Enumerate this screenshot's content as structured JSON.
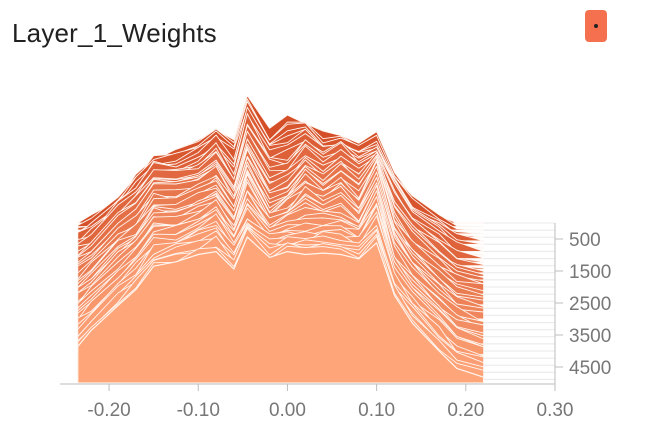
{
  "title": "Layer_1_Weights",
  "menu_icon": "more-icon",
  "colors": {
    "front": "#ffa57a",
    "back": "#d44e27",
    "accent": "#f4704f",
    "rim": "#fff5ef",
    "axis": "#bdbdbd",
    "tick_text": "#777777"
  },
  "chart_data": {
    "type": "area",
    "title": "Layer_1_Weights",
    "xlabel": "",
    "ylabel": "",
    "xlim": [
      -0.255,
      0.3
    ],
    "x_ticks": [
      -0.2,
      -0.1,
      0.0,
      0.1,
      0.2,
      0.3
    ],
    "x_tick_labels": [
      "-0.20",
      "-0.10",
      "0.00",
      "0.10",
      "0.20",
      "0.30"
    ],
    "step_range": [
      0,
      5000
    ],
    "step_ticks": [
      500,
      1500,
      2500,
      3500,
      4500
    ],
    "step_tick_labels": [
      "500",
      "1500",
      "2500",
      "3500",
      "4500"
    ],
    "grid": false,
    "x": [
      -0.235,
      -0.22,
      -0.19,
      -0.17,
      -0.15,
      -0.125,
      -0.1,
      -0.08,
      -0.06,
      -0.045,
      -0.02,
      0.0,
      0.02,
      0.04,
      0.06,
      0.08,
      0.1,
      0.12,
      0.14,
      0.17,
      0.19,
      0.22
    ],
    "series": [
      {
        "step": 0,
        "values": [
          0.0,
          0.03,
          0.18,
          0.33,
          0.45,
          0.5,
          0.56,
          0.66,
          0.58,
          0.87,
          0.62,
          0.72,
          0.7,
          0.6,
          0.58,
          0.55,
          0.6,
          0.35,
          0.17,
          0.06,
          0.0,
          0.0
        ]
      },
      {
        "step": 1000,
        "values": [
          0.08,
          0.14,
          0.33,
          0.43,
          0.6,
          0.58,
          0.62,
          0.73,
          0.52,
          0.9,
          0.64,
          0.63,
          0.77,
          0.67,
          0.74,
          0.64,
          0.7,
          0.45,
          0.27,
          0.13,
          0.04,
          0.0
        ]
      },
      {
        "step": 2000,
        "values": [
          0.14,
          0.22,
          0.4,
          0.49,
          0.66,
          0.66,
          0.7,
          0.79,
          0.6,
          0.86,
          0.59,
          0.66,
          0.8,
          0.71,
          0.8,
          0.69,
          0.9,
          0.49,
          0.32,
          0.16,
          0.06,
          0.02
        ]
      },
      {
        "step": 3000,
        "values": [
          0.19,
          0.27,
          0.46,
          0.55,
          0.72,
          0.72,
          0.78,
          0.84,
          0.66,
          0.96,
          0.69,
          0.75,
          0.86,
          0.79,
          0.85,
          0.73,
          0.97,
          0.53,
          0.36,
          0.19,
          0.08,
          0.03
        ]
      },
      {
        "step": 4000,
        "values": [
          0.23,
          0.32,
          0.5,
          0.6,
          0.76,
          0.78,
          0.84,
          0.91,
          0.74,
          0.93,
          0.79,
          0.83,
          0.83,
          0.85,
          0.84,
          0.8,
          1.0,
          0.57,
          0.39,
          0.21,
          0.09,
          0.03
        ]
      },
      {
        "step": 5000,
        "values": [
          0.25,
          0.36,
          0.53,
          0.64,
          0.8,
          0.83,
          0.88,
          0.9,
          0.78,
          1.0,
          0.86,
          0.9,
          0.88,
          0.89,
          0.88,
          0.85,
          0.96,
          0.6,
          0.41,
          0.22,
          0.1,
          0.04
        ]
      }
    ]
  }
}
